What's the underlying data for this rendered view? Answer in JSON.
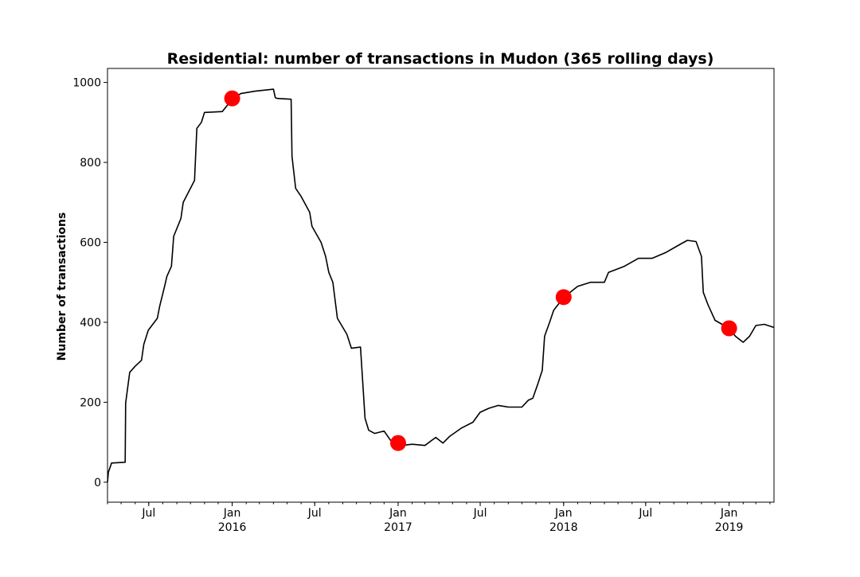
{
  "chart_data": {
    "type": "line",
    "title": "Residential: number of transactions in Mudon (365 rolling days)",
    "xlabel": "",
    "ylabel": "Number of transactions",
    "xlim": [
      "2015-04-01",
      "2019-04-10"
    ],
    "ylim": [
      -50,
      1035
    ],
    "grid": false,
    "legend": "none",
    "y_ticks": [
      {
        "value": 0,
        "label": "0"
      },
      {
        "value": 200,
        "label": "200"
      },
      {
        "value": 400,
        "label": "400"
      },
      {
        "value": 600,
        "label": "600"
      },
      {
        "value": 800,
        "label": "800"
      },
      {
        "value": 1000,
        "label": "1000"
      }
    ],
    "x_ticks": [
      {
        "date": "2015-07-01",
        "label": "Jul",
        "year": ""
      },
      {
        "date": "2016-01-01",
        "label": "Jan",
        "year": "2016"
      },
      {
        "date": "2016-07-01",
        "label": "Jul",
        "year": ""
      },
      {
        "date": "2017-01-01",
        "label": "Jan",
        "year": "2017"
      },
      {
        "date": "2017-07-01",
        "label": "Jul",
        "year": ""
      },
      {
        "date": "2018-01-01",
        "label": "Jan",
        "year": "2018"
      },
      {
        "date": "2018-07-01",
        "label": "Jul",
        "year": ""
      },
      {
        "date": "2019-01-01",
        "label": "Jan",
        "year": "2019"
      }
    ],
    "series": [
      {
        "color": "#000000",
        "points": [
          [
            "2015-04-01",
            0
          ],
          [
            "2015-04-03",
            25
          ],
          [
            "2015-04-10",
            48
          ],
          [
            "2015-05-10",
            50
          ],
          [
            "2015-05-11",
            198
          ],
          [
            "2015-05-20",
            275
          ],
          [
            "2015-06-01",
            290
          ],
          [
            "2015-06-15",
            305
          ],
          [
            "2015-06-20",
            345
          ],
          [
            "2015-06-30",
            380
          ],
          [
            "2015-07-20",
            410
          ],
          [
            "2015-07-25",
            440
          ],
          [
            "2015-08-05",
            490
          ],
          [
            "2015-08-10",
            515
          ],
          [
            "2015-08-20",
            540
          ],
          [
            "2015-08-25",
            615
          ],
          [
            "2015-09-10",
            660
          ],
          [
            "2015-09-15",
            700
          ],
          [
            "2015-10-10",
            755
          ],
          [
            "2015-10-15",
            885
          ],
          [
            "2015-10-25",
            900
          ],
          [
            "2015-11-01",
            925
          ],
          [
            "2015-12-10",
            927
          ],
          [
            "2016-01-01",
            958
          ],
          [
            "2016-01-20",
            972
          ],
          [
            "2016-02-20",
            978
          ],
          [
            "2016-04-01",
            983
          ],
          [
            "2016-04-05",
            962
          ],
          [
            "2016-04-10",
            960
          ],
          [
            "2016-05-10",
            958
          ],
          [
            "2016-05-12",
            815
          ],
          [
            "2016-05-20",
            735
          ],
          [
            "2016-06-01",
            715
          ],
          [
            "2016-06-20",
            675
          ],
          [
            "2016-06-25",
            640
          ],
          [
            "2016-07-15",
            600
          ],
          [
            "2016-07-25",
            565
          ],
          [
            "2016-08-01",
            525
          ],
          [
            "2016-08-10",
            500
          ],
          [
            "2016-08-20",
            410
          ],
          [
            "2016-09-10",
            370
          ],
          [
            "2016-09-20",
            335
          ],
          [
            "2016-10-10",
            338
          ],
          [
            "2016-10-13",
            285
          ],
          [
            "2016-10-20",
            160
          ],
          [
            "2016-10-28",
            130
          ],
          [
            "2016-11-10",
            122
          ],
          [
            "2016-12-01",
            128
          ],
          [
            "2016-12-15",
            105
          ],
          [
            "2017-01-01",
            98
          ],
          [
            "2017-01-10",
            92
          ],
          [
            "2017-02-01",
            95
          ],
          [
            "2017-03-01",
            92
          ],
          [
            "2017-03-25",
            112
          ],
          [
            "2017-04-10",
            98
          ],
          [
            "2017-04-25",
            115
          ],
          [
            "2017-05-20",
            135
          ],
          [
            "2017-06-15",
            150
          ],
          [
            "2017-07-01",
            175
          ],
          [
            "2017-07-20",
            185
          ],
          [
            "2017-08-10",
            192
          ],
          [
            "2017-09-01",
            188
          ],
          [
            "2017-10-01",
            188
          ],
          [
            "2017-10-15",
            205
          ],
          [
            "2017-10-25",
            210
          ],
          [
            "2017-11-05",
            245
          ],
          [
            "2017-11-15",
            280
          ],
          [
            "2017-11-20",
            365
          ],
          [
            "2017-12-01",
            400
          ],
          [
            "2017-12-10",
            430
          ],
          [
            "2018-01-01",
            462
          ],
          [
            "2018-02-01",
            490
          ],
          [
            "2018-03-01",
            500
          ],
          [
            "2018-04-01",
            500
          ],
          [
            "2018-04-10",
            525
          ],
          [
            "2018-05-15",
            540
          ],
          [
            "2018-06-15",
            560
          ],
          [
            "2018-07-15",
            560
          ],
          [
            "2018-08-15",
            575
          ],
          [
            "2018-09-15",
            595
          ],
          [
            "2018-10-01",
            605
          ],
          [
            "2018-10-20",
            602
          ],
          [
            "2018-11-01",
            565
          ],
          [
            "2018-11-05",
            475
          ],
          [
            "2018-11-15",
            445
          ],
          [
            "2018-12-01",
            405
          ],
          [
            "2019-01-01",
            385
          ],
          [
            "2019-01-15",
            365
          ],
          [
            "2019-02-01",
            350
          ],
          [
            "2019-02-15",
            365
          ],
          [
            "2019-03-01",
            392
          ],
          [
            "2019-03-20",
            395
          ],
          [
            "2019-04-10",
            387
          ]
        ]
      }
    ],
    "markers": {
      "color": "#ff0000",
      "points": [
        [
          "2016-01-01",
          960
        ],
        [
          "2017-01-01",
          98
        ],
        [
          "2018-01-01",
          463
        ],
        [
          "2019-01-01",
          385
        ]
      ]
    }
  }
}
